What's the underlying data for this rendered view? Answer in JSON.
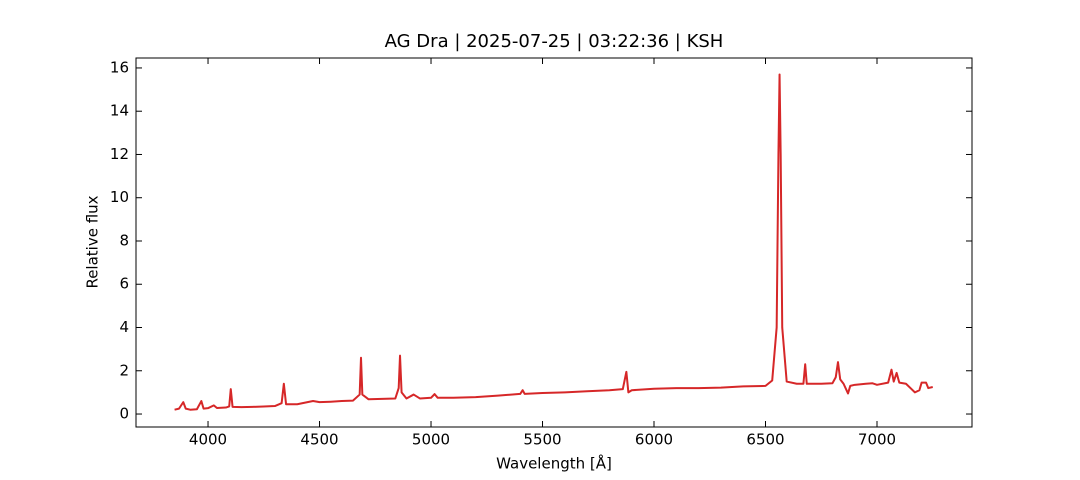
{
  "chart_data": {
    "type": "line",
    "title": "AG Dra | 2025-07-25 | 03:22:36 | KSH",
    "x_label": "Wavelength [Å]",
    "y_label": "Relative flux",
    "color": "#d62728",
    "x": [
      3850,
      3870,
      3889,
      3900,
      3920,
      3950,
      3970,
      3980,
      4000,
      4026,
      4040,
      4080,
      4095,
      4102,
      4110,
      4150,
      4200,
      4250,
      4300,
      4330,
      4340,
      4350,
      4400,
      4471,
      4500,
      4550,
      4600,
      4650,
      4680,
      4686,
      4692,
      4720,
      4780,
      4840,
      4855,
      4861,
      4868,
      4890,
      4922,
      4950,
      5000,
      5016,
      5030,
      5100,
      5200,
      5300,
      5400,
      5411,
      5420,
      5500,
      5600,
      5700,
      5800,
      5860,
      5876,
      5885,
      5900,
      6000,
      6100,
      6200,
      6300,
      6400,
      6500,
      6530,
      6550,
      6558,
      6563,
      6568,
      6575,
      6595,
      6640,
      6670,
      6678,
      6685,
      6750,
      6800,
      6815,
      6825,
      6835,
      6850,
      6870,
      6880,
      6900,
      6950,
      6980,
      7000,
      7050,
      7065,
      7075,
      7088,
      7100,
      7130,
      7150,
      7170,
      7190,
      7200,
      7220,
      7230,
      7250
    ],
    "values": [
      0.2,
      0.25,
      0.55,
      0.25,
      0.2,
      0.22,
      0.6,
      0.25,
      0.27,
      0.4,
      0.28,
      0.3,
      0.35,
      1.15,
      0.33,
      0.32,
      0.33,
      0.35,
      0.37,
      0.5,
      1.4,
      0.45,
      0.45,
      0.6,
      0.55,
      0.57,
      0.6,
      0.62,
      0.9,
      2.6,
      0.9,
      0.68,
      0.7,
      0.72,
      1.2,
      2.7,
      1.0,
      0.72,
      0.9,
      0.72,
      0.75,
      0.92,
      0.75,
      0.75,
      0.78,
      0.85,
      0.93,
      1.1,
      0.93,
      0.97,
      1.0,
      1.05,
      1.1,
      1.15,
      1.95,
      1.0,
      1.1,
      1.17,
      1.2,
      1.2,
      1.22,
      1.28,
      1.3,
      1.55,
      4.0,
      12.0,
      15.7,
      12.0,
      4.0,
      1.5,
      1.4,
      1.4,
      2.3,
      1.4,
      1.4,
      1.42,
      1.7,
      2.4,
      1.6,
      1.4,
      0.95,
      1.3,
      1.35,
      1.4,
      1.42,
      1.35,
      1.45,
      2.05,
      1.5,
      1.9,
      1.45,
      1.4,
      1.2,
      1.0,
      1.1,
      1.45,
      1.45,
      1.2,
      1.25
    ],
    "xlim": [
      3677,
      7426
    ],
    "ylim": [
      -0.6,
      16.46
    ],
    "xticks": [
      4000,
      4500,
      5000,
      5500,
      6000,
      6500,
      7000
    ],
    "yticks": [
      0,
      2,
      4,
      6,
      8,
      10,
      12,
      14,
      16
    ]
  }
}
